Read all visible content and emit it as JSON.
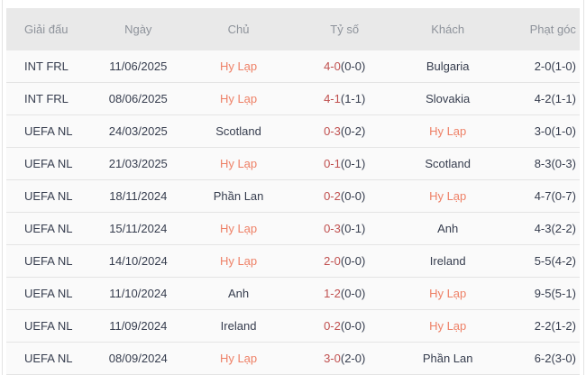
{
  "colors": {
    "highlight_team": "#ee8066",
    "score_accent": "#c0504f",
    "header_bg": "#e9e9e9",
    "header_text": "#8e939b",
    "body_text": "#363d4e",
    "row_bg": "#fafafa",
    "row_border": "#e4e4e4"
  },
  "highlighted_team": "Hy Lạp",
  "table": {
    "columns": [
      "Giải đấu",
      "Ngày",
      "Chủ",
      "Tỷ số",
      "Khách",
      "Phạt góc"
    ],
    "rows": [
      {
        "tournament": "INT FRL",
        "date": "11/06/2025",
        "home": "Hy Lạp",
        "score_main": "4-0",
        "score_half": "(0-0)",
        "away": "Bulgaria",
        "corners": "2-0(1-0)",
        "highlight": "home"
      },
      {
        "tournament": "INT FRL",
        "date": "08/06/2025",
        "home": "Hy Lạp",
        "score_main": "4-1",
        "score_half": "(1-1)",
        "away": "Slovakia",
        "corners": "4-2(1-1)",
        "highlight": "home"
      },
      {
        "tournament": "UEFA NL",
        "date": "24/03/2025",
        "home": "Scotland",
        "score_main": "0-3",
        "score_half": "(0-2)",
        "away": "Hy Lạp",
        "corners": "3-0(1-0)",
        "highlight": "away"
      },
      {
        "tournament": "UEFA NL",
        "date": "21/03/2025",
        "home": "Hy Lạp",
        "score_main": "0-1",
        "score_half": "(0-1)",
        "away": "Scotland",
        "corners": "8-3(0-3)",
        "highlight": "home"
      },
      {
        "tournament": "UEFA NL",
        "date": "18/11/2024",
        "home": "Phần Lan",
        "score_main": "0-2",
        "score_half": "(0-0)",
        "away": "Hy Lạp",
        "corners": "4-7(0-7)",
        "highlight": "away"
      },
      {
        "tournament": "UEFA NL",
        "date": "15/11/2024",
        "home": "Hy Lạp",
        "score_main": "0-3",
        "score_half": "(0-1)",
        "away": "Anh",
        "corners": "4-3(2-2)",
        "highlight": "home"
      },
      {
        "tournament": "UEFA NL",
        "date": "14/10/2024",
        "home": "Hy Lạp",
        "score_main": "2-0",
        "score_half": "(0-0)",
        "away": "Ireland",
        "corners": "5-5(4-2)",
        "highlight": "home"
      },
      {
        "tournament": "UEFA NL",
        "date": "11/10/2024",
        "home": "Anh",
        "score_main": "1-2",
        "score_half": "(0-0)",
        "away": "Hy Lạp",
        "corners": "9-5(5-1)",
        "highlight": "away"
      },
      {
        "tournament": "UEFA NL",
        "date": "11/09/2024",
        "home": "Ireland",
        "score_main": "0-2",
        "score_half": "(0-0)",
        "away": "Hy Lạp",
        "corners": "2-2(1-2)",
        "highlight": "away"
      },
      {
        "tournament": "UEFA NL",
        "date": "08/09/2024",
        "home": "Hy Lạp",
        "score_main": "3-0",
        "score_half": "(2-0)",
        "away": "Phần Lan",
        "corners": "6-2(3-0)",
        "highlight": "home"
      }
    ]
  }
}
